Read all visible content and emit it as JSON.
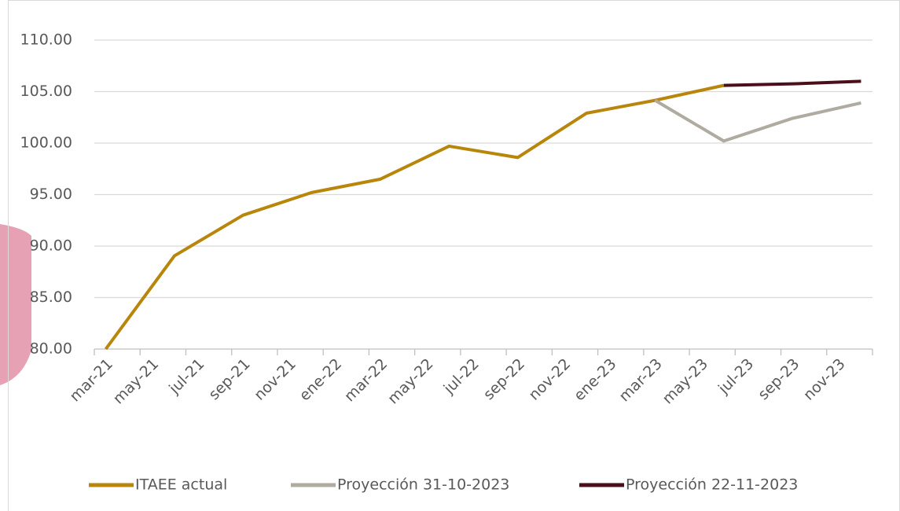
{
  "chart_data": {
    "type": "line",
    "categories": [
      "mar-21",
      null,
      "may-21",
      null,
      "jul-21",
      null,
      "sep-21",
      null,
      "nov-21",
      null,
      "ene-22",
      null,
      "mar-22",
      null,
      "may-22",
      null,
      "jul-22",
      null,
      "sep-22",
      null,
      "nov-22",
      null,
      "ene-23",
      null,
      "mar-23",
      null,
      "may-23",
      null,
      "jul-23",
      null,
      "sep-23",
      null,
      "nov-23",
      null
    ],
    "series": [
      {
        "name": "ITAEE actual",
        "color": "#b8860b",
        "values": [
          80.0,
          null,
          null,
          89.05,
          null,
          null,
          93.0,
          null,
          null,
          95.2,
          null,
          null,
          96.5,
          null,
          null,
          99.7,
          null,
          null,
          98.6,
          null,
          null,
          102.9,
          null,
          null,
          104.15,
          null,
          null,
          105.6,
          null,
          null,
          null,
          null,
          null,
          null
        ]
      },
      {
        "name": "Proyección 31-10-2023",
        "color": "#b0aba0",
        "values": [
          null,
          null,
          null,
          null,
          null,
          null,
          null,
          null,
          null,
          null,
          null,
          null,
          null,
          null,
          null,
          null,
          null,
          null,
          null,
          null,
          null,
          null,
          null,
          null,
          104.15,
          null,
          null,
          100.2,
          null,
          null,
          102.4,
          null,
          null,
          103.9
        ]
      },
      {
        "name": "Proyección 22-11-2023",
        "color": "#4a0f1a",
        "values": [
          null,
          null,
          null,
          null,
          null,
          null,
          null,
          null,
          null,
          null,
          null,
          null,
          null,
          null,
          null,
          null,
          null,
          null,
          null,
          null,
          null,
          null,
          null,
          null,
          null,
          null,
          null,
          105.6,
          null,
          null,
          105.75,
          null,
          null,
          106.0
        ]
      }
    ],
    "connect_gaps": true,
    "ylim": [
      80,
      110
    ],
    "yticks": [
      {
        "value": 80,
        "label": "80.00"
      },
      {
        "value": 85,
        "label": "85.00"
      },
      {
        "value": 90,
        "label": "90.00"
      },
      {
        "value": 95,
        "label": "95.00"
      },
      {
        "value": 100,
        "label": "100.00"
      },
      {
        "value": 105,
        "label": "105.00"
      },
      {
        "value": 110,
        "label": "110.00"
      }
    ],
    "grid": true,
    "legend": "bottom"
  }
}
